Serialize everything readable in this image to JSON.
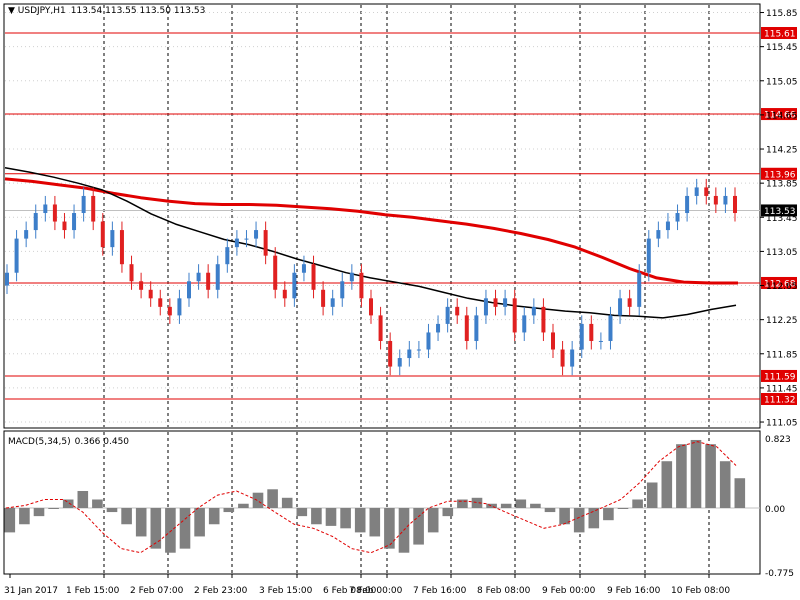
{
  "header": {
    "symbol": "USDJPY,H1",
    "ohlc": "113.54 113.55 113.50 113.53"
  },
  "macd": {
    "title": "MACD(5,34,5)",
    "values": "0.366 0.450",
    "scale_top": "0.823",
    "scale_mid": "0.00",
    "scale_bottom": "-0.775"
  },
  "price_axis": {
    "ticks": [
      "115.85",
      "115.45",
      "115.05",
      "114.65",
      "114.25",
      "113.85",
      "113.45",
      "113.05",
      "112.65",
      "112.25",
      "111.85",
      "111.45",
      "111.05"
    ]
  },
  "time_axis": {
    "labels": [
      "31 Jan 2017",
      "1 Feb 15:00",
      "2 Feb 07:00",
      "2 Feb 23:00",
      "3 Feb 15:00",
      "6 Feb 08:00",
      "7 Feb 00:00",
      "7 Feb 16:00",
      "8 Feb 08:00",
      "9 Feb 00:00",
      "9 Feb 16:00",
      "10 Feb 08:00"
    ]
  },
  "colors": {
    "bull": "#3d7ec9",
    "bear": "#e02020",
    "level_line": "#e00000",
    "ma_slow": "#e00000",
    "ma_fast": "#000000",
    "macd_hist": "#808080",
    "macd_signal": "#e00000"
  },
  "chart_data": {
    "type": "candlestick",
    "symbol": "USDJPY",
    "timeframe": "H1",
    "price_range": [
      110.98,
      115.95
    ],
    "grid": true,
    "current_price": "113.53",
    "levels": [
      "115.61",
      "114.66",
      "113.96",
      "112.68",
      "111.59",
      "111.32"
    ],
    "series": [
      {
        "kind": "moving-average",
        "y": [
          114.03,
          113.98,
          113.92,
          113.85,
          113.77,
          113.64,
          113.49,
          113.37,
          113.28,
          113.19,
          113.13,
          113.05,
          112.96,
          112.88,
          112.8,
          112.74,
          112.69,
          112.64,
          112.57,
          112.5,
          112.45,
          112.41,
          112.38,
          112.35,
          112.33,
          112.3,
          112.29,
          112.27,
          112.31,
          112.37,
          112.42
        ]
      },
      {
        "kind": "moving-average",
        "y": [
          113.9,
          113.87,
          113.83,
          113.79,
          113.73,
          113.68,
          113.64,
          113.61,
          113.6,
          113.6,
          113.59,
          113.57,
          113.55,
          113.52,
          113.48,
          113.45,
          113.41,
          113.37,
          113.32,
          113.26,
          113.19,
          113.1,
          112.98,
          112.85,
          112.74,
          112.69,
          112.68,
          112.68
        ]
      },
      {
        "kind": "candles",
        "close": [
          112.8,
          113.2,
          113.3,
          113.5,
          113.6,
          113.4,
          113.3,
          113.5,
          113.7,
          113.4,
          113.1,
          113.3,
          112.9,
          112.7,
          112.6,
          112.5,
          112.4,
          112.3,
          112.5,
          112.7,
          112.8,
          112.6,
          112.9,
          113.1,
          113.2,
          113.2,
          113.3,
          113.0,
          112.6,
          112.5,
          112.8,
          112.9,
          112.6,
          112.4,
          112.5,
          112.7,
          112.8,
          112.5,
          112.3,
          112.0,
          111.7,
          111.8,
          111.9,
          111.9,
          112.1,
          112.2,
          112.4,
          112.3,
          112.0,
          112.3,
          112.5,
          112.4,
          112.5,
          112.1,
          112.3,
          112.4,
          112.1,
          111.9,
          111.7,
          111.9,
          112.2,
          112.0,
          112.0,
          112.3,
          112.5,
          112.4,
          112.8,
          113.2,
          113.3,
          113.4,
          113.5,
          113.7,
          113.8,
          113.7,
          113.6,
          113.7,
          113.5
        ]
      },
      {
        "kind": "macd",
        "histogram": [
          -0.3,
          -0.2,
          -0.1,
          0.0,
          0.1,
          0.2,
          0.1,
          -0.05,
          -0.2,
          -0.35,
          -0.5,
          -0.55,
          -0.5,
          -0.35,
          -0.2,
          -0.05,
          0.05,
          0.18,
          0.22,
          0.12,
          -0.1,
          -0.2,
          -0.22,
          -0.25,
          -0.3,
          -0.35,
          -0.5,
          -0.55,
          -0.45,
          -0.3,
          -0.1,
          0.1,
          0.12,
          0.05,
          0.05,
          0.1,
          0.05,
          -0.05,
          -0.2,
          -0.3,
          -0.25,
          -0.15,
          0.0,
          0.1,
          0.3,
          0.55,
          0.75,
          0.8,
          0.75,
          0.55,
          0.35
        ]
      },
      {
        "kind": "macd-signal",
        "y": [
          0.0,
          0.03,
          0.1,
          0.1,
          -0.05,
          -0.3,
          -0.5,
          -0.55,
          -0.4,
          -0.2,
          0.0,
          0.15,
          0.2,
          0.1,
          -0.05,
          -0.2,
          -0.25,
          -0.35,
          -0.5,
          -0.55,
          -0.45,
          -0.2,
          0.0,
          0.08,
          0.08,
          0.05,
          -0.05,
          -0.15,
          -0.25,
          -0.2,
          -0.1,
          0.0,
          0.1,
          0.3,
          0.55,
          0.72,
          0.78,
          0.72,
          0.5
        ]
      }
    ]
  }
}
